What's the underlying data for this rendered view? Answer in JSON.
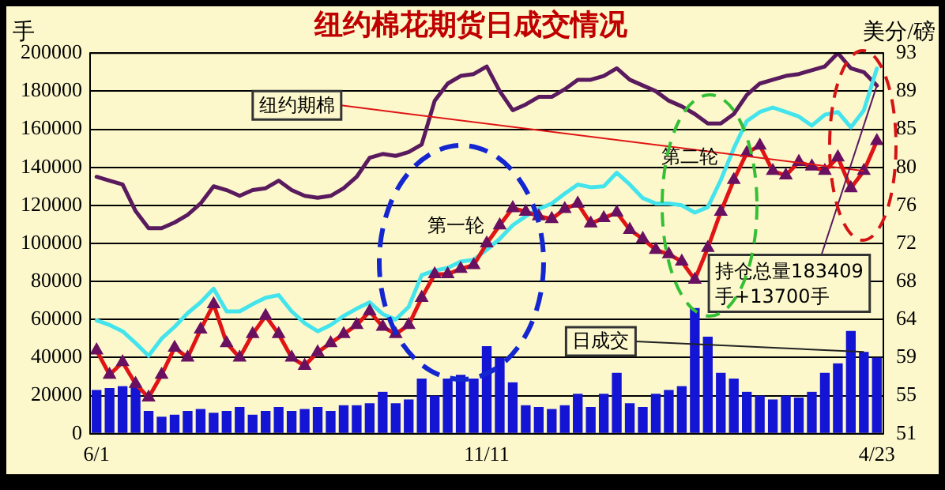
{
  "chart_data": {
    "type": "line",
    "title": "纽约棉花期货日成交情况",
    "ylabel": "手",
    "y2label": "美分/磅",
    "categories": [
      "6/1",
      null,
      null,
      null,
      null,
      null,
      null,
      null,
      null,
      null,
      null,
      null,
      null,
      null,
      null,
      null,
      null,
      null,
      null,
      null,
      null,
      null,
      null,
      null,
      null,
      null,
      null,
      null,
      null,
      null,
      "11/11",
      null,
      null,
      null,
      null,
      null,
      null,
      null,
      null,
      null,
      null,
      null,
      null,
      null,
      null,
      null,
      null,
      null,
      null,
      null,
      null,
      null,
      null,
      null,
      null,
      null,
      null,
      null,
      null,
      null,
      "4/23"
    ],
    "series": [
      {
        "name": "日成交",
        "type": "bar",
        "color": "#1414d4",
        "values": [
          23000,
          24000,
          25000,
          25000,
          12000,
          9000,
          10000,
          12000,
          13000,
          11000,
          12000,
          14000,
          10000,
          12000,
          14000,
          12000,
          13000,
          14000,
          12000,
          15000,
          15000,
          16000,
          22000,
          16000,
          18000,
          29000,
          20000,
          29000,
          31000,
          29000,
          46000,
          40000,
          27000,
          15000,
          14000,
          13000,
          15000,
          21000,
          14000,
          21000,
          32000,
          16000,
          14000,
          21000,
          23000,
          25000,
          66000,
          51000,
          32000,
          29000,
          22000,
          20000,
          18000,
          20000,
          19000,
          22000,
          32000,
          37000,
          54000,
          43000,
          40000
        ]
      },
      {
        "color": "#5a1a5e",
        "values": [
          135000,
          133000,
          131000,
          117000,
          108000,
          108000,
          111000,
          115000,
          121000,
          130000,
          128000,
          125000,
          128000,
          129000,
          133000,
          128000,
          125000,
          124000,
          125000,
          129000,
          135000,
          145000,
          147000,
          146000,
          148000,
          152000,
          175000,
          184000,
          188000,
          189000,
          193000,
          180000,
          170000,
          173000,
          177000,
          177000,
          181000,
          186000,
          186000,
          188000,
          192000,
          186000,
          183000,
          180000,
          175000,
          172000,
          168000,
          163000,
          163000,
          168000,
          178000,
          184000,
          186000,
          188000,
          189000,
          191000,
          193000,
          200000,
          192000,
          190000,
          183000
        ]
      },
      {
        "color": "#44e4ec",
        "axis": "y2",
        "values": [
          63.5,
          63,
          62.3,
          61,
          59.6,
          61.5,
          62.8,
          64.3,
          65.5,
          67,
          64.5,
          64.5,
          65.3,
          66,
          66.3,
          64.5,
          63.2,
          62.3,
          63,
          64,
          64.8,
          65.5,
          64.2,
          63.6,
          65,
          68.5,
          69,
          69.3,
          70,
          70.2,
          71.3,
          72.5,
          74,
          75,
          75.8,
          76.4,
          77.5,
          78.5,
          78.2,
          78.3,
          79.8,
          78.5,
          77,
          76.4,
          76.4,
          76.2,
          75.4,
          76,
          79,
          82.5,
          85.5,
          86.5,
          87,
          86.5,
          86,
          85,
          86.2,
          86.5,
          84.8,
          86.7,
          91.3
        ]
      },
      {
        "name": "纽约期棉",
        "color": "#e01414",
        "axis": "y2",
        "marker": "triangle",
        "values": [
          60.2,
          57.5,
          58.9,
          56.5,
          55,
          57.5,
          60.5,
          59.4,
          62.5,
          65.3,
          61,
          59.4,
          62,
          64,
          62,
          59.4,
          58.5,
          60,
          61,
          62,
          63,
          64.5,
          62.8,
          62,
          63,
          66,
          68.6,
          68.6,
          69.2,
          69.6,
          72,
          74,
          75.9,
          75.5,
          75,
          74.7,
          75.8,
          76.4,
          74.2,
          74.8,
          75.4,
          73.5,
          72.5,
          71.3,
          70.8,
          70,
          68,
          71.5,
          75.5,
          79,
          82,
          82.8,
          80,
          79.5,
          81,
          80.5,
          80,
          81.5,
          78.1,
          80,
          83.3
        ]
      }
    ],
    "ylim": [
      0,
      200000
    ],
    "yticks": [
      0,
      20000,
      40000,
      60000,
      80000,
      100000,
      120000,
      140000,
      160000,
      180000,
      200000
    ],
    "y2lim": [
      51,
      93
    ],
    "y2ticks": [
      51,
      {
        "value": 55.2,
        "label": "55"
      },
      {
        "value": 59.4,
        "label": "59"
      },
      {
        "value": 63.6,
        "label": "64"
      },
      {
        "value": 67.8,
        "label": "68"
      },
      72,
      {
        "value": 76.2,
        "label": "76"
      },
      {
        "value": 80.4,
        "label": "80"
      },
      {
        "value": 84.6,
        "label": "85"
      },
      {
        "value": 88.8,
        "label": "89"
      },
      93
    ],
    "grid": "y",
    "annotations": [
      "第一轮",
      "第二轮",
      {
        "text": "持仓总量183409手+13700手",
        "x": "4/23",
        "y": 183000
      }
    ]
  }
}
